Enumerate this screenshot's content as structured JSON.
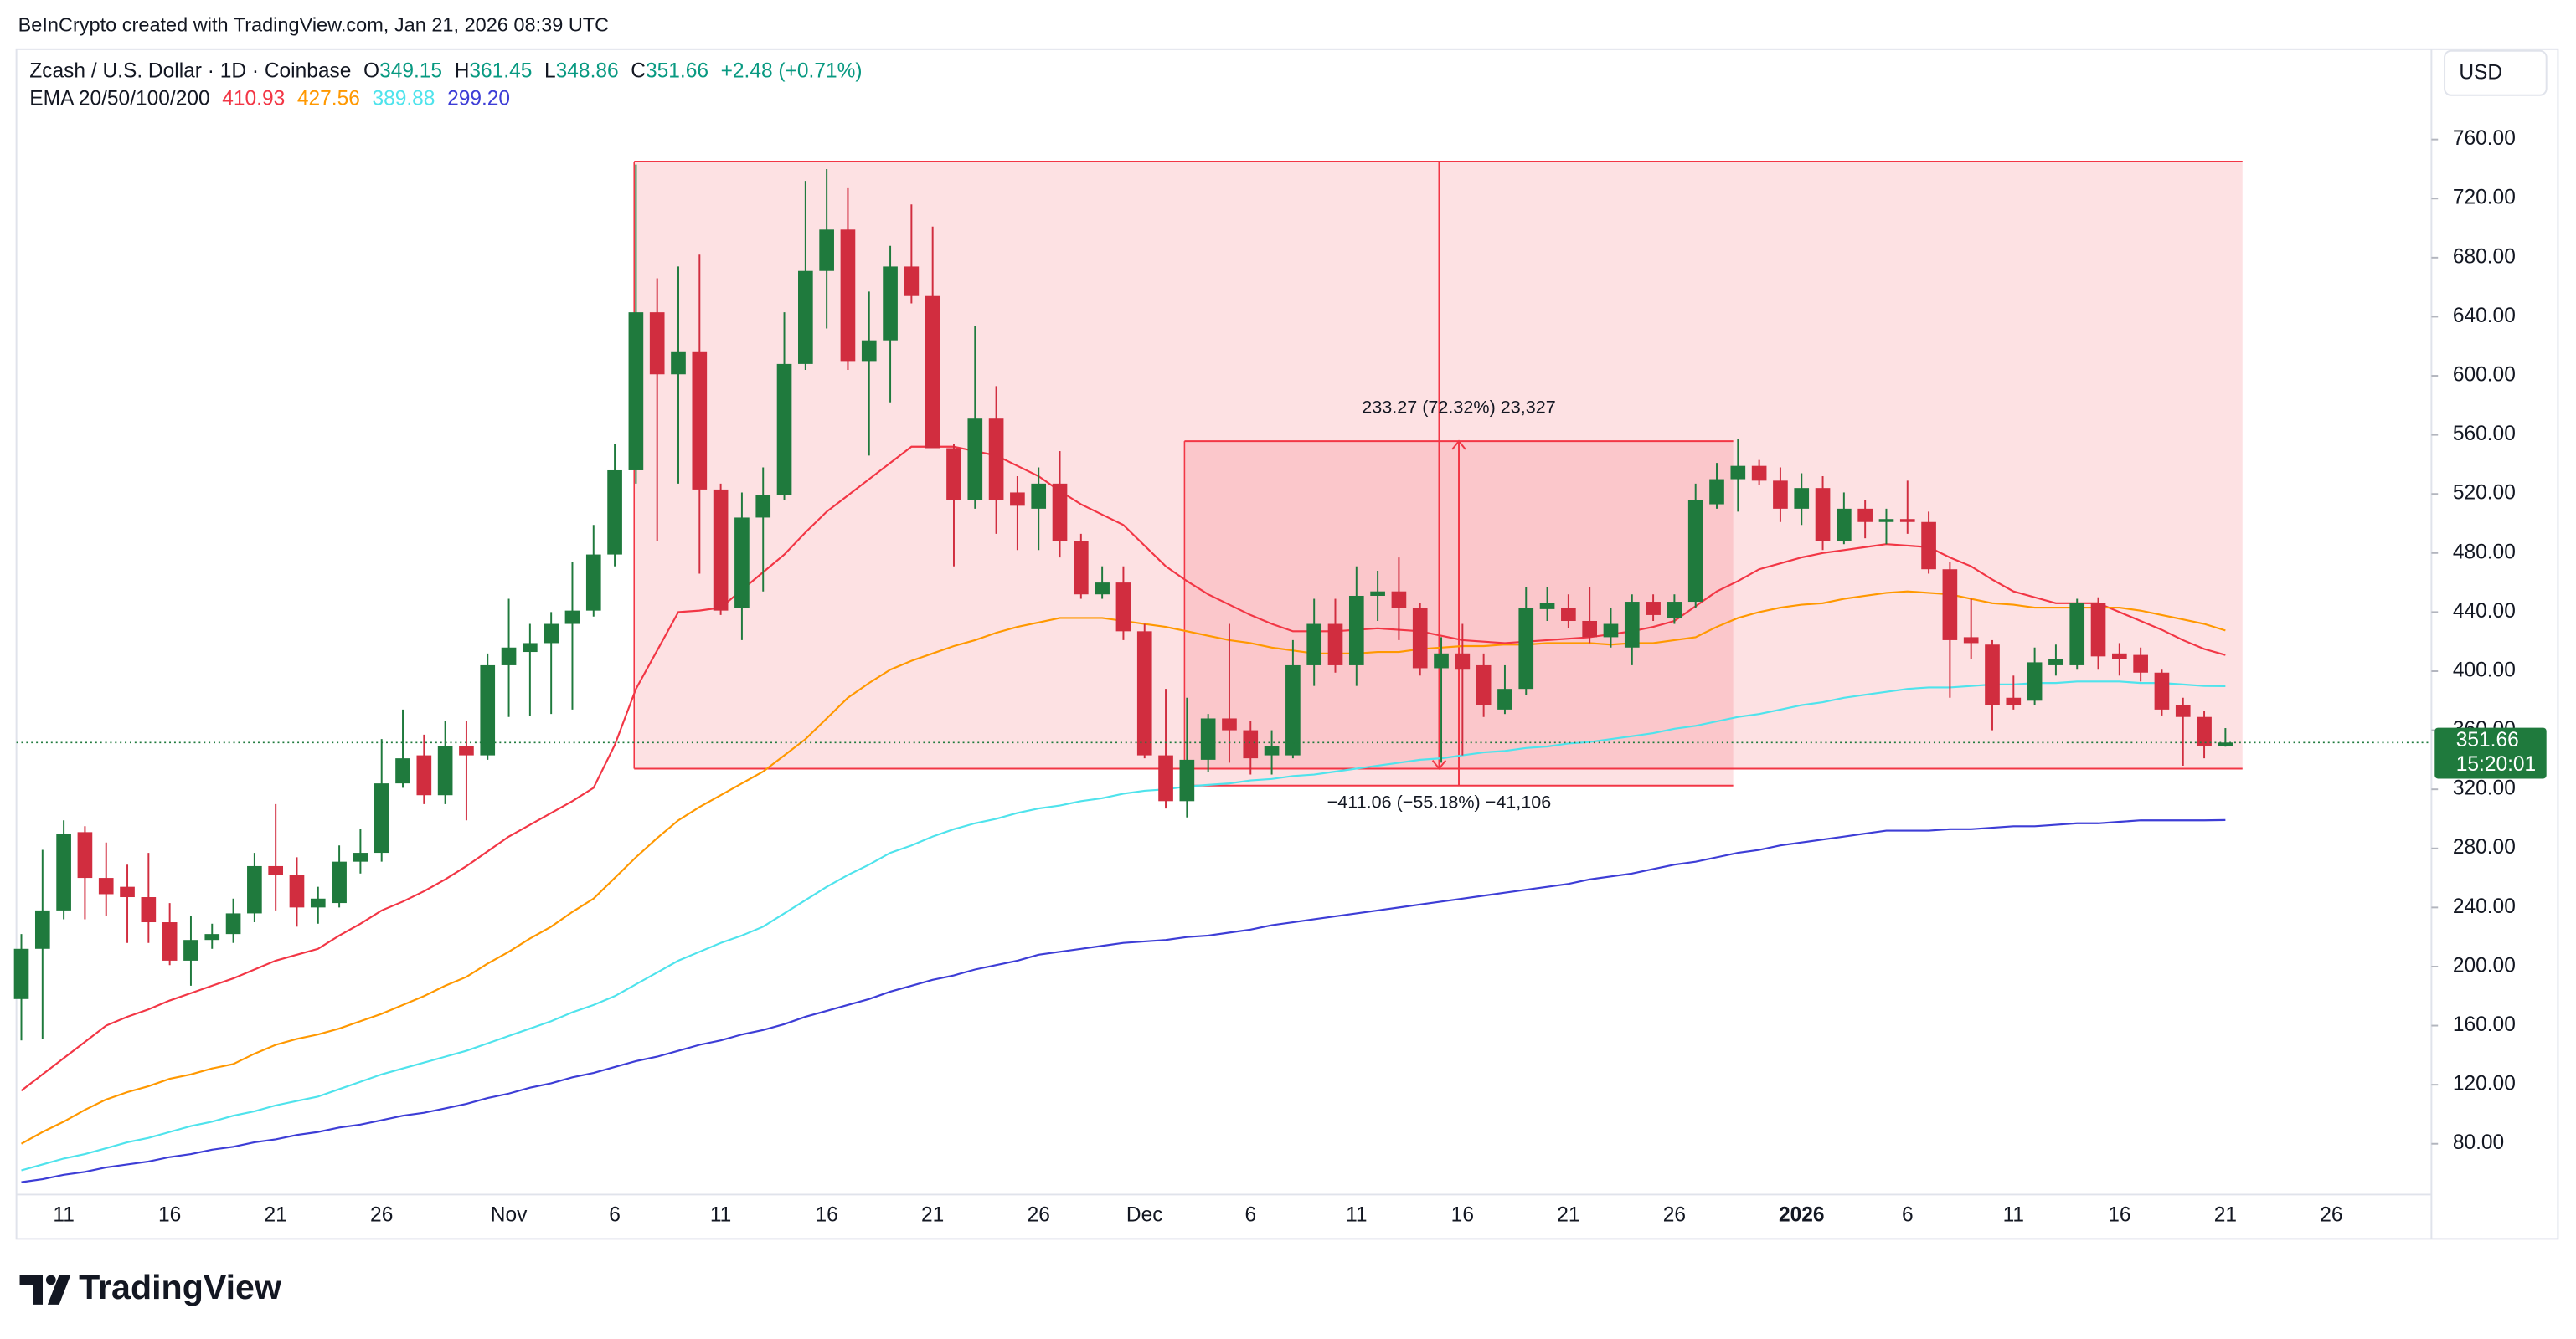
{
  "chart_data": {
    "type": "candlestick",
    "credit": "BeInCrypto created with TradingView.com, Jan 21, 2026 08:39 UTC",
    "title": "Zcash / U.S. Dollar · 1D · Coinbase",
    "ohlc_labels": [
      "O",
      "H",
      "L",
      "C"
    ],
    "change": "+2.48 (+0.71%)",
    "currency": "USD",
    "countdown": "15:20:01",
    "brand": "TradingView",
    "up_color": "#1f7a3d",
    "down_color": "#d12d3f",
    "grid": false,
    "ylim": [
      45.6,
      821.1
    ],
    "yticks": [
      {
        "value": 80,
        "label": "80.00"
      },
      {
        "value": 120,
        "label": "120.00"
      },
      {
        "value": 160,
        "label": "160.00"
      },
      {
        "value": 200,
        "label": "200.00"
      },
      {
        "value": 240,
        "label": "240.00"
      },
      {
        "value": 280,
        "label": "280.00"
      },
      {
        "value": 320,
        "label": "320.00"
      },
      {
        "value": 360,
        "label": "360.00"
      },
      {
        "value": 400,
        "label": "400.00"
      },
      {
        "value": 440,
        "label": "440.00"
      },
      {
        "value": 480,
        "label": "480.00"
      },
      {
        "value": 520,
        "label": "520.00"
      },
      {
        "value": 560,
        "label": "560.00"
      },
      {
        "value": 600,
        "label": "600.00"
      },
      {
        "value": 640,
        "label": "640.00"
      },
      {
        "value": 680,
        "label": "680.00"
      },
      {
        "value": 720,
        "label": "720.00"
      },
      {
        "value": 760,
        "label": "760.00"
      }
    ],
    "categories": [
      null,
      null,
      "11",
      null,
      null,
      null,
      null,
      "16",
      null,
      null,
      null,
      null,
      "21",
      null,
      null,
      null,
      null,
      "26",
      null,
      null,
      null,
      null,
      null,
      "Nov",
      null,
      null,
      null,
      null,
      "6",
      null,
      null,
      null,
      null,
      "11",
      null,
      null,
      null,
      null,
      "16",
      null,
      null,
      null,
      null,
      "21",
      null,
      null,
      null,
      null,
      "26",
      null,
      null,
      null,
      null,
      "Dec",
      null,
      null,
      null,
      null,
      "6",
      null,
      null,
      null,
      null,
      "11",
      null,
      null,
      null,
      null,
      "16",
      null,
      null,
      null,
      null,
      "21",
      null,
      null,
      null,
      null,
      "26",
      null,
      null,
      null,
      null,
      null,
      "2026",
      null,
      null,
      null,
      null,
      "6",
      null,
      null,
      null,
      null,
      "11",
      null,
      null,
      null,
      null,
      "16",
      null,
      null,
      null,
      null,
      "21",
      null,
      null,
      null,
      null,
      "26"
    ],
    "open": [
      178,
      212,
      238,
      291,
      260,
      254,
      247,
      230,
      204,
      218,
      222,
      236,
      268,
      262,
      240,
      243,
      271,
      277,
      324,
      343,
      316,
      349,
      343,
      404,
      413,
      419,
      432,
      441,
      479,
      536,
      643,
      601,
      616,
      523,
      443,
      504,
      519,
      608,
      671,
      699,
      610,
      624,
      674,
      654,
      551,
      516,
      571,
      521,
      510,
      527,
      488,
      452,
      460,
      427,
      343,
      312,
      340,
      368,
      360,
      343,
      343,
      404,
      432,
      404,
      451,
      454,
      443,
      402,
      412,
      404,
      374,
      388,
      442,
      443,
      434,
      423,
      416,
      447,
      436,
      447,
      513,
      530,
      539,
      529,
      510,
      524,
      488,
      510,
      501,
      503,
      501,
      469,
      423,
      418,
      382,
      380,
      404,
      404,
      446,
      412,
      411,
      399,
      377,
      369,
      349.15,
      null,
      null,
      null,
      null,
      null
    ],
    "high": [
      222,
      279,
      299,
      295,
      284,
      269,
      277,
      243,
      234,
      229,
      246,
      277,
      310,
      274,
      254,
      282,
      293,
      354,
      374,
      357,
      366,
      366,
      412,
      449,
      432,
      440,
      474,
      499,
      554,
      743,
      666,
      674,
      682,
      527,
      521,
      538,
      643,
      732,
      740,
      727,
      657,
      688,
      716,
      701,
      554,
      634,
      593,
      532,
      538,
      549,
      493,
      471,
      471,
      432,
      388,
      382,
      371,
      432,
      366,
      360,
      421,
      449,
      449,
      471,
      468,
      477,
      446,
      423,
      432,
      412,
      404,
      457,
      457,
      452,
      457,
      443,
      452,
      452,
      452,
      527,
      541,
      557,
      543,
      538,
      534,
      532,
      521,
      516,
      510,
      529,
      508,
      474,
      449,
      421,
      397,
      416,
      418,
      449,
      450,
      419,
      416,
      401,
      382,
      373,
      361.45,
      null,
      null,
      null,
      null,
      null
    ],
    "low": [
      150,
      151,
      232,
      232,
      234,
      216,
      216,
      201,
      187,
      212,
      216,
      230,
      238,
      227,
      229,
      240,
      263,
      271,
      321,
      310,
      310,
      299,
      340,
      369,
      370,
      371,
      374,
      437,
      471,
      527,
      488,
      527,
      466,
      438,
      421,
      454,
      516,
      604,
      632,
      604,
      546,
      582,
      649,
      551,
      471,
      510,
      493,
      482,
      482,
      477,
      449,
      449,
      421,
      341,
      307,
      301,
      332,
      338,
      330,
      330,
      341,
      390,
      399,
      390,
      434,
      421,
      397,
      338,
      343,
      369,
      371,
      384,
      434,
      429,
      419,
      416,
      404,
      434,
      432,
      443,
      510,
      508,
      526,
      501,
      499,
      482,
      486,
      490,
      486,
      493,
      466,
      382,
      408,
      360,
      374,
      377,
      397,
      401,
      401,
      397,
      393,
      370,
      336,
      341,
      348.86,
      null,
      null,
      null,
      null,
      null
    ],
    "close": [
      212,
      238,
      290,
      260,
      249,
      247,
      230,
      204,
      218,
      222,
      236,
      268,
      262,
      240,
      246,
      271,
      277,
      324,
      341,
      316,
      349,
      343,
      404,
      416,
      419,
      432,
      441,
      479,
      536,
      643,
      601,
      616,
      523,
      441,
      504,
      519,
      608,
      671,
      699,
      610,
      624,
      674,
      654,
      551,
      516,
      571,
      516,
      512,
      527,
      488,
      452,
      460,
      427,
      343,
      312,
      340,
      368,
      360,
      341,
      349,
      404,
      432,
      404,
      451,
      454,
      443,
      402,
      412,
      401,
      377,
      388,
      443,
      446,
      434,
      423,
      432,
      447,
      438,
      447,
      516,
      530,
      539,
      529,
      510,
      524,
      488,
      510,
      501,
      503,
      501,
      469,
      421,
      419,
      377,
      377,
      406,
      408,
      446,
      410,
      408,
      399,
      374,
      369,
      349,
      351.66,
      null,
      null,
      null,
      null,
      null
    ],
    "indicator": {
      "label": "EMA 20/50/100/200",
      "lines": [
        {
          "color": "#f23645",
          "legend_value": "410.93",
          "values": [
            116,
            127,
            138,
            149,
            160,
            166,
            171,
            177,
            182,
            187,
            192,
            198,
            204,
            208,
            212,
            221,
            229,
            238,
            244,
            251,
            259,
            268,
            278,
            288,
            296,
            304,
            312,
            321,
            350,
            388,
            414,
            440,
            441,
            443,
            455,
            467,
            479,
            494,
            508,
            519,
            530,
            541,
            552,
            552,
            552,
            549,
            546,
            539,
            532,
            522,
            513,
            506,
            499,
            485,
            471,
            461,
            452,
            445,
            438,
            432,
            427,
            427,
            427,
            428,
            429,
            428,
            427,
            424,
            421,
            420,
            419,
            420,
            421,
            422,
            423,
            425,
            427,
            430,
            434,
            444,
            454,
            461,
            469,
            473,
            477,
            480,
            482,
            484,
            486,
            485,
            484,
            477,
            471,
            462,
            454,
            450,
            446,
            446,
            446,
            440,
            434,
            428,
            421,
            415,
            410.93,
            null,
            null,
            null,
            null,
            null
          ]
        },
        {
          "color": "#ff9800",
          "legend_value": "427.56",
          "values": [
            80,
            88,
            95,
            103,
            110,
            115,
            119,
            124,
            127,
            131,
            134,
            141,
            147,
            151,
            154,
            158,
            163,
            168,
            174,
            180,
            187,
            193,
            202,
            210,
            219,
            227,
            237,
            246,
            260,
            274,
            287,
            299,
            308,
            316,
            324,
            332,
            343,
            354,
            368,
            382,
            392,
            401,
            407,
            412,
            417,
            421,
            426,
            430,
            433,
            436,
            436,
            436,
            434,
            432,
            430,
            427,
            424,
            421,
            419,
            416,
            414,
            412,
            412,
            412,
            413,
            413,
            415,
            416,
            417,
            417,
            418,
            418,
            419,
            419,
            419,
            418,
            419,
            419,
            421,
            423,
            430,
            436,
            440,
            443,
            445,
            446,
            449,
            451,
            453,
            454,
            453,
            452,
            449,
            446,
            445,
            443,
            443,
            443,
            443,
            443,
            441,
            438,
            435,
            432,
            427.56,
            null,
            null,
            null,
            null,
            null
          ]
        },
        {
          "color": "#4fe3ec",
          "legend_value": "389.88",
          "values": [
            62,
            66,
            70,
            73,
            77,
            81,
            84,
            88,
            92,
            95,
            99,
            102,
            106,
            109,
            112,
            117,
            122,
            127,
            131,
            135,
            139,
            143,
            148,
            153,
            158,
            163,
            169,
            174,
            180,
            188,
            196,
            204,
            210,
            216,
            221,
            227,
            236,
            245,
            254,
            262,
            269,
            277,
            282,
            288,
            293,
            297,
            300,
            304,
            307,
            309,
            312,
            314,
            317,
            319,
            320,
            322,
            323,
            324,
            326,
            327,
            329,
            330,
            332,
            334,
            336,
            338,
            340,
            341,
            343,
            345,
            346,
            348,
            349,
            351,
            352,
            354,
            356,
            358,
            361,
            363,
            366,
            369,
            371,
            374,
            377,
            379,
            382,
            384,
            386,
            388,
            389,
            389,
            390,
            391,
            391,
            392,
            392,
            393,
            393,
            393,
            392,
            392,
            391,
            390,
            389.88,
            null,
            null,
            null,
            null,
            null
          ]
        },
        {
          "color": "#3d3dd6",
          "legend_value": "299.20",
          "values": [
            54,
            56,
            59,
            61,
            64,
            66,
            68,
            71,
            73,
            76,
            78,
            81,
            83,
            86,
            88,
            91,
            93,
            96,
            99,
            101,
            104,
            107,
            111,
            114,
            118,
            121,
            125,
            128,
            132,
            136,
            139,
            143,
            147,
            150,
            154,
            157,
            161,
            166,
            170,
            174,
            178,
            183,
            187,
            191,
            194,
            198,
            201,
            204,
            208,
            210,
            212,
            214,
            216,
            217,
            218,
            220,
            221,
            223,
            225,
            228,
            230,
            232,
            234,
            236,
            238,
            240,
            242,
            244,
            246,
            248,
            250,
            252,
            254,
            256,
            259,
            261,
            263,
            266,
            269,
            271,
            274,
            277,
            279,
            282,
            284,
            286,
            288,
            290,
            292,
            292,
            292,
            293,
            293,
            294,
            295,
            295,
            296,
            297,
            297,
            298,
            299,
            299,
            299,
            299,
            299.2,
            null,
            null,
            null,
            null,
            null
          ]
        }
      ]
    },
    "zones": [
      {
        "color": "#f23645",
        "top": 745.06,
        "bottom": 334,
        "label": "−411.06 (−55.18%) −41,106"
      },
      {
        "color": "#f23645",
        "top": 555.77,
        "bottom": 322.5,
        "label": "233.27 (72.32%) 23,327"
      }
    ]
  }
}
